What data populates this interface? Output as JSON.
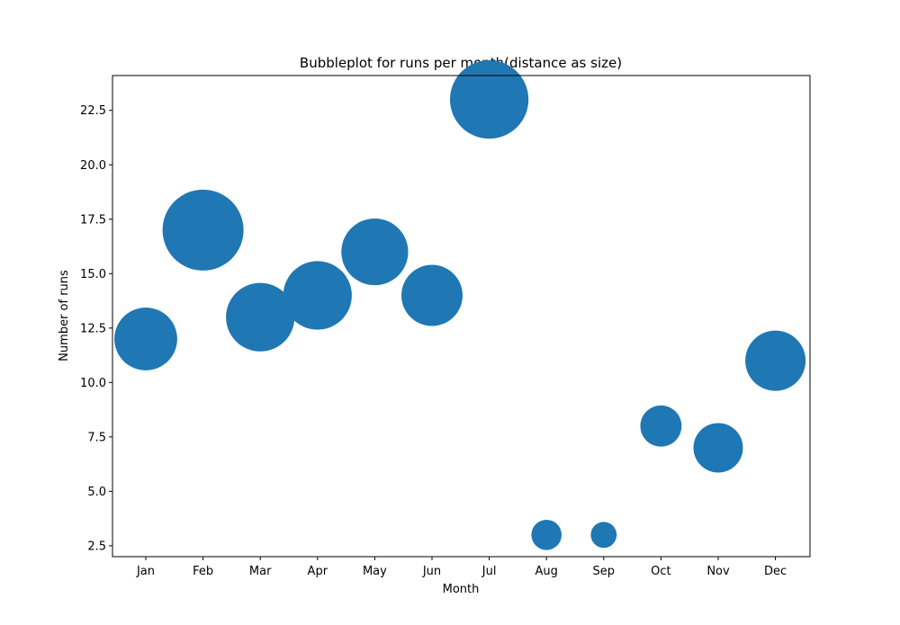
{
  "chart_data": {
    "type": "scatter",
    "title": "Bubbleplot for runs per month(distance as size)",
    "xlabel": "Month",
    "ylabel": "Number of runs",
    "categories": [
      "Jan",
      "Feb",
      "Mar",
      "Apr",
      "May",
      "Jun",
      "Jul",
      "Aug",
      "Sep",
      "Oct",
      "Nov",
      "Dec"
    ],
    "values": [
      12,
      17,
      13,
      14,
      16,
      14,
      23,
      3,
      3,
      8,
      7,
      11
    ],
    "size_encoding": "distance",
    "relative_sizes": [
      1.0,
      1.66,
      1.19,
      1.19,
      1.13,
      0.95,
      1.56,
      0.23,
      0.17,
      0.43,
      0.62,
      0.92
    ],
    "ylim": [
      2.0,
      24.1
    ],
    "yticks": [
      2.5,
      5.0,
      7.5,
      10.0,
      12.5,
      15.0,
      17.5,
      20.0,
      22.5
    ],
    "ytick_labels": [
      "2.5",
      "5.0",
      "7.5",
      "10.0",
      "12.5",
      "15.0",
      "17.5",
      "20.0",
      "22.5"
    ],
    "grid": false,
    "legend": "none",
    "colors": {
      "bubble": "#1f77b4",
      "axis": "#000000",
      "background": "#ffffff"
    }
  }
}
